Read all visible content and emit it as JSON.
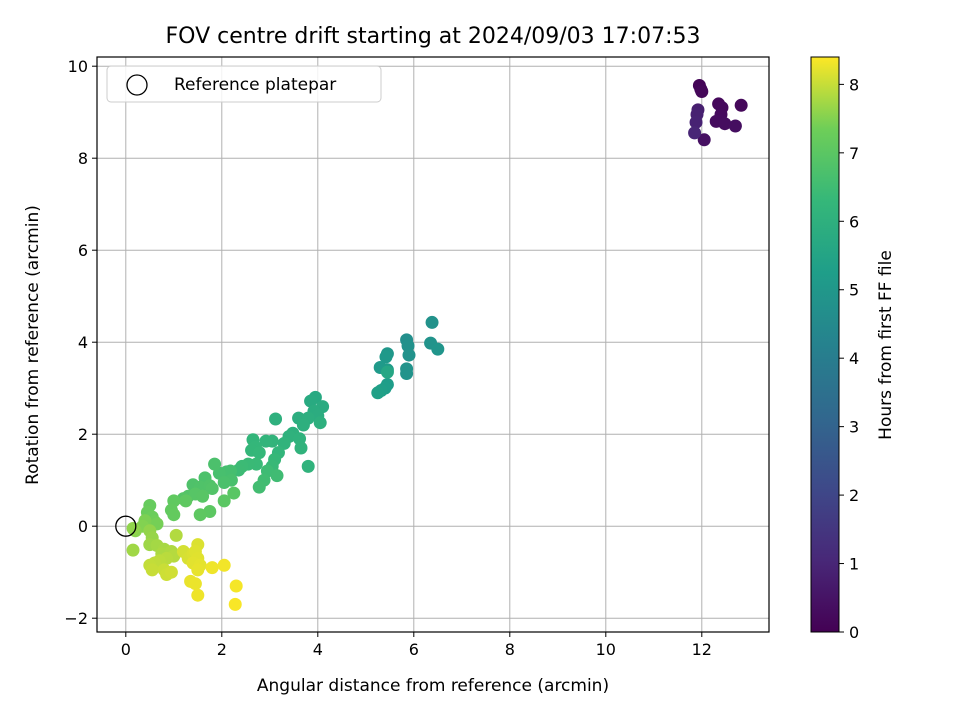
{
  "chart_data": {
    "type": "scatter",
    "title": "FOV centre drift starting at 2024/09/03 17:07:53",
    "xlabel": "Angular distance from reference (arcmin)",
    "ylabel": "Rotation from reference (arcmin)",
    "xlim": [
      -0.6,
      13.4
    ],
    "ylim": [
      -2.3,
      10.2
    ],
    "xticks": [
      0,
      2,
      4,
      6,
      8,
      10,
      12
    ],
    "yticks": [
      -2,
      0,
      2,
      4,
      6,
      8,
      10
    ],
    "grid": true,
    "legend": {
      "placement": "upper-left",
      "entries": [
        "Reference platepar"
      ]
    },
    "reference_point": {
      "x": 0,
      "y": 0
    },
    "colorbar": {
      "label": "Hours from first FF file",
      "range": [
        0,
        8.4
      ],
      "ticks": [
        0,
        1,
        2,
        3,
        4,
        5,
        6,
        7,
        8
      ],
      "colormap": "viridis"
    },
    "points": [
      {
        "x": 11.95,
        "y": 9.58,
        "t": 0.1
      },
      {
        "x": 11.98,
        "y": 9.5,
        "t": 0.12
      },
      {
        "x": 12.0,
        "y": 9.45,
        "t": 0.15
      },
      {
        "x": 12.82,
        "y": 9.15,
        "t": 0.18
      },
      {
        "x": 12.35,
        "y": 9.18,
        "t": 0.2
      },
      {
        "x": 12.42,
        "y": 9.1,
        "t": 0.22
      },
      {
        "x": 12.4,
        "y": 8.95,
        "t": 0.25
      },
      {
        "x": 12.38,
        "y": 8.82,
        "t": 0.28
      },
      {
        "x": 12.3,
        "y": 8.8,
        "t": 0.3
      },
      {
        "x": 12.48,
        "y": 8.75,
        "t": 0.32
      },
      {
        "x": 12.7,
        "y": 8.7,
        "t": 0.35
      },
      {
        "x": 12.05,
        "y": 8.4,
        "t": 0.4
      },
      {
        "x": 11.92,
        "y": 9.05,
        "t": 0.8
      },
      {
        "x": 11.9,
        "y": 8.95,
        "t": 0.85
      },
      {
        "x": 11.88,
        "y": 8.78,
        "t": 0.9
      },
      {
        "x": 11.85,
        "y": 8.55,
        "t": 1.0
      },
      {
        "x": 6.38,
        "y": 4.43,
        "t": 4.8
      },
      {
        "x": 6.35,
        "y": 3.98,
        "t": 4.85
      },
      {
        "x": 6.5,
        "y": 3.85,
        "t": 4.9
      },
      {
        "x": 5.85,
        "y": 4.05,
        "t": 4.7
      },
      {
        "x": 5.88,
        "y": 3.92,
        "t": 4.75
      },
      {
        "x": 5.9,
        "y": 3.72,
        "t": 4.8
      },
      {
        "x": 5.85,
        "y": 3.42,
        "t": 4.82
      },
      {
        "x": 5.85,
        "y": 3.32,
        "t": 4.85
      },
      {
        "x": 5.45,
        "y": 3.75,
        "t": 5.0
      },
      {
        "x": 5.42,
        "y": 3.68,
        "t": 5.05
      },
      {
        "x": 5.3,
        "y": 3.45,
        "t": 5.1
      },
      {
        "x": 5.45,
        "y": 3.4,
        "t": 5.15
      },
      {
        "x": 5.45,
        "y": 3.08,
        "t": 5.2
      },
      {
        "x": 5.4,
        "y": 3.0,
        "t": 5.25
      },
      {
        "x": 5.32,
        "y": 2.95,
        "t": 5.3
      },
      {
        "x": 5.25,
        "y": 2.9,
        "t": 5.35
      },
      {
        "x": 5.45,
        "y": 3.35,
        "t": 5.6
      },
      {
        "x": 3.95,
        "y": 2.8,
        "t": 5.7
      },
      {
        "x": 3.85,
        "y": 2.72,
        "t": 5.75
      },
      {
        "x": 4.1,
        "y": 2.6,
        "t": 5.8
      },
      {
        "x": 3.92,
        "y": 2.5,
        "t": 5.82
      },
      {
        "x": 4.0,
        "y": 2.4,
        "t": 5.85
      },
      {
        "x": 3.6,
        "y": 2.35,
        "t": 5.9
      },
      {
        "x": 3.8,
        "y": 2.35,
        "t": 5.92
      },
      {
        "x": 3.7,
        "y": 2.2,
        "t": 5.95
      },
      {
        "x": 4.05,
        "y": 2.25,
        "t": 5.97
      },
      {
        "x": 3.12,
        "y": 2.33,
        "t": 6.0
      },
      {
        "x": 3.48,
        "y": 2.02,
        "t": 6.02
      },
      {
        "x": 3.4,
        "y": 1.95,
        "t": 6.05
      },
      {
        "x": 3.62,
        "y": 1.9,
        "t": 6.07
      },
      {
        "x": 3.65,
        "y": 1.7,
        "t": 6.1
      },
      {
        "x": 3.8,
        "y": 1.3,
        "t": 6.1
      },
      {
        "x": 3.3,
        "y": 1.8,
        "t": 6.12
      },
      {
        "x": 3.05,
        "y": 1.85,
        "t": 6.15
      },
      {
        "x": 2.92,
        "y": 1.85,
        "t": 6.17
      },
      {
        "x": 3.18,
        "y": 1.6,
        "t": 6.2
      },
      {
        "x": 2.65,
        "y": 1.88,
        "t": 6.22
      },
      {
        "x": 2.7,
        "y": 1.72,
        "t": 6.25
      },
      {
        "x": 2.62,
        "y": 1.65,
        "t": 6.27
      },
      {
        "x": 2.78,
        "y": 1.6,
        "t": 6.3
      },
      {
        "x": 3.1,
        "y": 1.45,
        "t": 6.32
      },
      {
        "x": 3.05,
        "y": 1.3,
        "t": 6.35
      },
      {
        "x": 2.72,
        "y": 1.35,
        "t": 6.37
      },
      {
        "x": 2.55,
        "y": 1.35,
        "t": 6.4
      },
      {
        "x": 2.42,
        "y": 1.3,
        "t": 6.42
      },
      {
        "x": 2.35,
        "y": 1.22,
        "t": 6.45
      },
      {
        "x": 2.95,
        "y": 1.2,
        "t": 6.47
      },
      {
        "x": 3.15,
        "y": 1.1,
        "t": 6.5
      },
      {
        "x": 2.88,
        "y": 1.0,
        "t": 6.52
      },
      {
        "x": 2.78,
        "y": 0.85,
        "t": 6.55
      },
      {
        "x": 2.18,
        "y": 1.2,
        "t": 6.6
      },
      {
        "x": 2.1,
        "y": 1.18,
        "t": 6.62
      },
      {
        "x": 1.95,
        "y": 1.15,
        "t": 6.65
      },
      {
        "x": 2.2,
        "y": 1.0,
        "t": 6.67
      },
      {
        "x": 2.05,
        "y": 0.95,
        "t": 6.7
      },
      {
        "x": 1.85,
        "y": 1.35,
        "t": 6.72
      },
      {
        "x": 1.65,
        "y": 1.05,
        "t": 6.75
      },
      {
        "x": 1.4,
        "y": 0.9,
        "t": 6.77
      },
      {
        "x": 1.55,
        "y": 0.85,
        "t": 6.8
      },
      {
        "x": 1.75,
        "y": 0.88,
        "t": 6.82
      },
      {
        "x": 1.8,
        "y": 0.82,
        "t": 6.85
      },
      {
        "x": 1.3,
        "y": 0.65,
        "t": 6.87
      },
      {
        "x": 1.2,
        "y": 0.6,
        "t": 6.9
      },
      {
        "x": 1.45,
        "y": 0.7,
        "t": 6.92
      },
      {
        "x": 1.6,
        "y": 0.65,
        "t": 6.95
      },
      {
        "x": 2.25,
        "y": 0.72,
        "t": 6.97
      },
      {
        "x": 2.05,
        "y": 0.55,
        "t": 7.0
      },
      {
        "x": 1.75,
        "y": 0.32,
        "t": 7.02
      },
      {
        "x": 1.55,
        "y": 0.25,
        "t": 7.05
      },
      {
        "x": 1.25,
        "y": 0.55,
        "t": 7.07
      },
      {
        "x": 1.0,
        "y": 0.55,
        "t": 7.1
      },
      {
        "x": 0.95,
        "y": 0.35,
        "t": 7.12
      },
      {
        "x": 1.0,
        "y": 0.25,
        "t": 7.15
      },
      {
        "x": 0.5,
        "y": 0.45,
        "t": 7.2
      },
      {
        "x": 0.45,
        "y": 0.3,
        "t": 7.25
      },
      {
        "x": 0.55,
        "y": 0.2,
        "t": 7.3
      },
      {
        "x": 0.6,
        "y": 0.1,
        "t": 7.35
      },
      {
        "x": 0.65,
        "y": 0.05,
        "t": 7.4
      },
      {
        "x": 0.4,
        "y": 0.12,
        "t": 7.45
      },
      {
        "x": 0.35,
        "y": 0.0,
        "t": 7.5
      },
      {
        "x": 0.2,
        "y": -0.1,
        "t": 7.55
      },
      {
        "x": 0.15,
        "y": -0.05,
        "t": 7.6
      },
      {
        "x": 0.5,
        "y": -0.1,
        "t": 7.62
      },
      {
        "x": 0.55,
        "y": -0.25,
        "t": 7.65
      },
      {
        "x": 0.5,
        "y": -0.4,
        "t": 7.7
      },
      {
        "x": 0.15,
        "y": -0.52,
        "t": 7.72
      },
      {
        "x": 0.65,
        "y": -0.42,
        "t": 7.75
      },
      {
        "x": 0.8,
        "y": -0.5,
        "t": 7.77
      },
      {
        "x": 0.75,
        "y": -0.6,
        "t": 7.8
      },
      {
        "x": 0.95,
        "y": -0.55,
        "t": 7.82
      },
      {
        "x": 1.05,
        "y": -0.2,
        "t": 7.85
      },
      {
        "x": 1.0,
        "y": -0.65,
        "t": 7.87
      },
      {
        "x": 0.85,
        "y": -0.7,
        "t": 7.9
      },
      {
        "x": 0.7,
        "y": -0.75,
        "t": 7.92
      },
      {
        "x": 0.6,
        "y": -0.8,
        "t": 7.95
      },
      {
        "x": 0.5,
        "y": -0.85,
        "t": 7.97
      },
      {
        "x": 0.55,
        "y": -0.95,
        "t": 8.0
      },
      {
        "x": 0.8,
        "y": -0.95,
        "t": 8.02
      },
      {
        "x": 0.85,
        "y": -1.05,
        "t": 8.05
      },
      {
        "x": 0.95,
        "y": -1.0,
        "t": 8.07
      },
      {
        "x": 1.2,
        "y": -0.55,
        "t": 8.1
      },
      {
        "x": 1.3,
        "y": -0.7,
        "t": 8.12
      },
      {
        "x": 1.4,
        "y": -0.6,
        "t": 8.14
      },
      {
        "x": 1.5,
        "y": -0.4,
        "t": 8.15
      },
      {
        "x": 1.45,
        "y": -0.55,
        "t": 8.17
      },
      {
        "x": 1.5,
        "y": -0.7,
        "t": 8.19
      },
      {
        "x": 1.4,
        "y": -0.8,
        "t": 8.2
      },
      {
        "x": 1.55,
        "y": -0.85,
        "t": 8.22
      },
      {
        "x": 1.5,
        "y": -0.95,
        "t": 8.24
      },
      {
        "x": 1.35,
        "y": -1.2,
        "t": 8.25
      },
      {
        "x": 1.45,
        "y": -1.25,
        "t": 8.27
      },
      {
        "x": 1.5,
        "y": -1.5,
        "t": 8.29
      },
      {
        "x": 1.8,
        "y": -0.9,
        "t": 8.3
      },
      {
        "x": 2.05,
        "y": -0.85,
        "t": 8.32
      },
      {
        "x": 2.3,
        "y": -1.3,
        "t": 8.34
      },
      {
        "x": 2.28,
        "y": -1.7,
        "t": 8.36
      }
    ]
  }
}
